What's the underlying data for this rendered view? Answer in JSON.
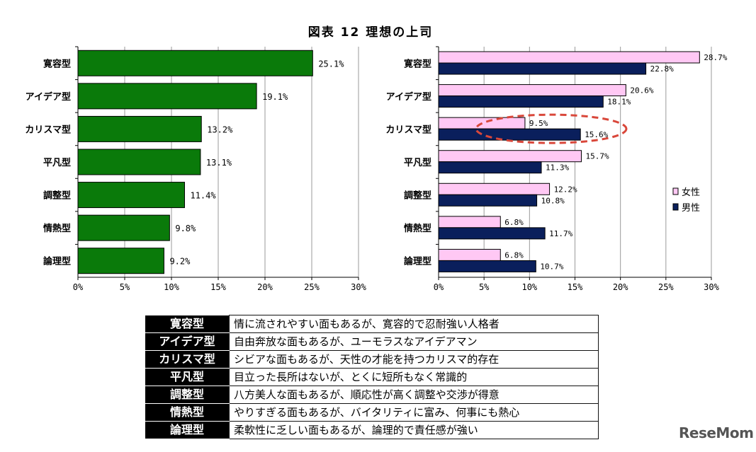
{
  "title": "図表 12 理想の上司",
  "chart_data": [
    {
      "type": "bar",
      "orientation": "horizontal",
      "categories": [
        "寛容型",
        "アイデア型",
        "カリスマ型",
        "平凡型",
        "調整型",
        "情熱型",
        "論理型"
      ],
      "values": [
        25.1,
        19.1,
        13.2,
        13.1,
        11.4,
        9.8,
        9.2
      ],
      "value_labels": [
        "25.1%",
        "19.1%",
        "13.2%",
        "13.1%",
        "11.4%",
        "9.8%",
        "9.2%"
      ],
      "xlim": [
        0,
        30
      ],
      "xticks": [
        "0%",
        "5%",
        "10%",
        "15%",
        "20%",
        "25%",
        "30%"
      ],
      "grid": true,
      "color": "#0a7a0a"
    },
    {
      "type": "bar",
      "orientation": "horizontal",
      "categories": [
        "寛容型",
        "アイデア型",
        "カリスマ型",
        "平凡型",
        "調整型",
        "情熱型",
        "論理型"
      ],
      "series": [
        {
          "name": "女性",
          "values": [
            28.7,
            20.6,
            9.5,
            15.7,
            12.2,
            6.8,
            6.8
          ],
          "value_labels": [
            "28.7%",
            "20.6%",
            "9.5%",
            "15.7%",
            "12.2%",
            "6.8%",
            "6.8%"
          ],
          "color": "#ffc8f4"
        },
        {
          "name": "男性",
          "values": [
            22.8,
            18.1,
            15.6,
            11.3,
            10.8,
            11.7,
            10.7
          ],
          "value_labels": [
            "22.8%",
            "18.1%",
            "15.6%",
            "11.3%",
            "10.8%",
            "11.7%",
            "10.7%"
          ],
          "color": "#0a1f5c"
        }
      ],
      "xlim": [
        0,
        30
      ],
      "xticks": [
        "0%",
        "5%",
        "10%",
        "15%",
        "20%",
        "25%",
        "30%"
      ],
      "grid": true,
      "legend": "right",
      "highlight_category": "カリスマ型",
      "highlight_color": "#d9473a"
    }
  ],
  "table": {
    "rows": [
      {
        "type": "寛容型",
        "desc": "情に流されやすい面もあるが、寛容的で忍耐強い人格者"
      },
      {
        "type": "アイデア型",
        "desc": "自由奔放な面もあるが、ユーモラスなアイデアマン"
      },
      {
        "type": "カリスマ型",
        "desc": "シビアな面もあるが、天性の才能を持つカリスマ的存在"
      },
      {
        "type": "平凡型",
        "desc": "目立った長所はないが、とくに短所もなく常識的"
      },
      {
        "type": "調整型",
        "desc": "八方美人な面もあるが、順応性が高く調整や交渉が得意"
      },
      {
        "type": "情熱型",
        "desc": "やりすぎる面もあるが、バイタリティに富み、何事にも熱心"
      },
      {
        "type": "論理型",
        "desc": "柔軟性に乏しい面もあるが、論理的で責任感が強い"
      }
    ]
  },
  "watermark": "ReseMom"
}
